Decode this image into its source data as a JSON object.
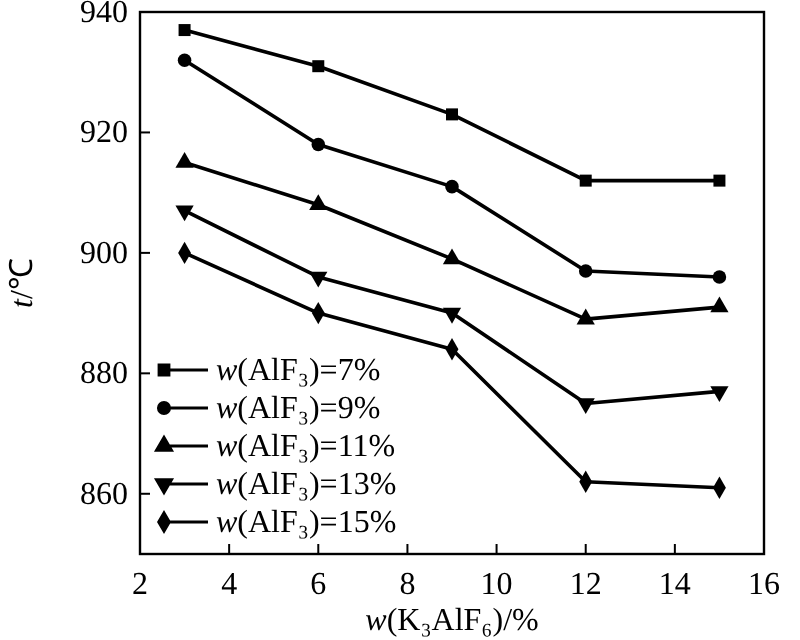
{
  "chart_data": {
    "type": "line",
    "xlabel": "w(K₃AlF₆)/%",
    "ylabel": "t/℃",
    "x": [
      3,
      6,
      9,
      12,
      15
    ],
    "xlim": [
      2,
      16
    ],
    "xticks": [
      2,
      4,
      6,
      8,
      10,
      12,
      14,
      16
    ],
    "ylim": [
      850,
      940
    ],
    "yticks": [
      860,
      880,
      900,
      920,
      940
    ],
    "legend": "bottom left",
    "grid": false,
    "series": [
      {
        "name": "w(AlF₃)=7%",
        "color": "#000000",
        "marker": "square",
        "values": [
          937,
          931,
          923,
          912,
          912
        ]
      },
      {
        "name": "w(AlF₃)=9%",
        "color": "#000000",
        "marker": "circle",
        "values": [
          932,
          918,
          911,
          897,
          896
        ]
      },
      {
        "name": "w(AlF₃)=11%",
        "color": "#000000",
        "marker": "triangle",
        "values": [
          915,
          908,
          899,
          889,
          891
        ]
      },
      {
        "name": "w(AlF₃)=13%",
        "color": "#000000",
        "marker": "triangle-down",
        "values": [
          907,
          896,
          890,
          875,
          877
        ]
      },
      {
        "name": "w(AlF₃)=15%",
        "color": "#000000",
        "marker": "diamond",
        "values": [
          900,
          890,
          884,
          862,
          861
        ]
      }
    ]
  }
}
